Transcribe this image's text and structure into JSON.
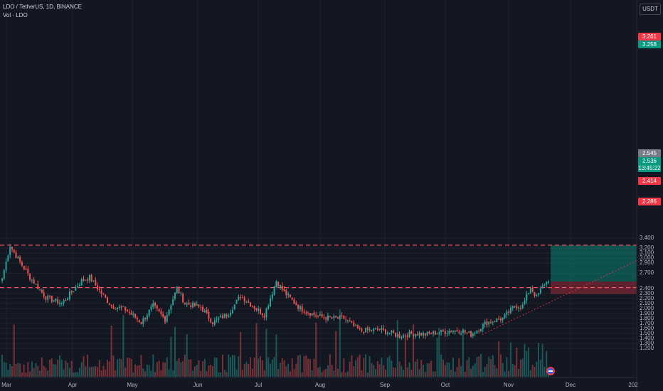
{
  "header": {
    "title": "LDO / TetherUS, 1D, BINANCE",
    "volume_label": "Vol · LDO"
  },
  "currency_button": "USDT",
  "colors": {
    "up": "#26a69a",
    "down": "#ef5350",
    "background": "#131722",
    "grid": "#1e222d",
    "line": "#f7525f"
  },
  "price_tags": [
    {
      "text": "3.261",
      "color": "#f23645"
    },
    {
      "text": "3.258",
      "color": "#089981"
    },
    {
      "text": "2.545",
      "color": "#787b86"
    },
    {
      "text": "2.536",
      "color": "#089981"
    },
    {
      "text": "13:45:22",
      "color": "#089981"
    },
    {
      "text": "2.414",
      "color": "#f23645"
    },
    {
      "text": "2.286",
      "color": "#f23645"
    }
  ],
  "chart_data": {
    "type": "candlestick",
    "y_axis": {
      "ylim": [
        1.17,
        3.45
      ],
      "ticks": [
        "3.400",
        "3.200",
        "3.100",
        "3.000",
        "2.900",
        "2.700",
        "2.400",
        "2.300",
        "2.200",
        "2.100",
        "2.000",
        "1.900",
        "1.800",
        "1.700",
        "1.600",
        "1.500",
        "1.400",
        "1.300",
        "1.200"
      ]
    },
    "x_axis": {
      "ticks": [
        "Mar",
        "Apr",
        "May",
        "Jun",
        "Jul",
        "Aug",
        "Sep",
        "Oct",
        "Nov",
        "Dec",
        "202"
      ]
    },
    "horizontal_lines": [
      3.261,
      2.414
    ],
    "position": {
      "entry": 2.536,
      "target": 3.258,
      "stop": 2.286
    },
    "trendline": {
      "from_price": 1.48,
      "to_price": 2.95
    },
    "anchor_closes": [
      [
        0,
        2.6
      ],
      [
        4,
        3.26
      ],
      [
        7,
        3.05
      ],
      [
        14,
        2.62
      ],
      [
        22,
        2.22
      ],
      [
        30,
        2.1
      ],
      [
        40,
        2.55
      ],
      [
        44,
        2.62
      ],
      [
        50,
        2.3
      ],
      [
        55,
        2.05
      ],
      [
        62,
        1.98
      ],
      [
        70,
        1.72
      ],
      [
        76,
        2.05
      ],
      [
        82,
        1.78
      ],
      [
        88,
        2.4
      ],
      [
        92,
        2.1
      ],
      [
        100,
        2.02
      ],
      [
        106,
        1.72
      ],
      [
        114,
        1.9
      ],
      [
        120,
        2.25
      ],
      [
        126,
        2.05
      ],
      [
        132,
        1.87
      ],
      [
        138,
        2.55
      ],
      [
        142,
        2.32
      ],
      [
        150,
        2.0
      ],
      [
        158,
        1.85
      ],
      [
        166,
        1.8
      ],
      [
        172,
        1.8
      ],
      [
        180,
        1.55
      ],
      [
        190,
        1.58
      ],
      [
        200,
        1.45
      ],
      [
        207,
        1.5
      ],
      [
        213,
        1.48
      ],
      [
        220,
        1.52
      ],
      [
        226,
        1.55
      ],
      [
        230,
        1.56
      ],
      [
        236,
        1.48
      ],
      [
        244,
        1.72
      ],
      [
        252,
        1.8
      ],
      [
        258,
        2.05
      ],
      [
        262,
        2.05
      ],
      [
        266,
        2.42
      ],
      [
        269,
        2.22
      ],
      [
        273,
        2.5
      ],
      [
        275,
        2.536
      ]
    ],
    "last_close": 2.536
  }
}
